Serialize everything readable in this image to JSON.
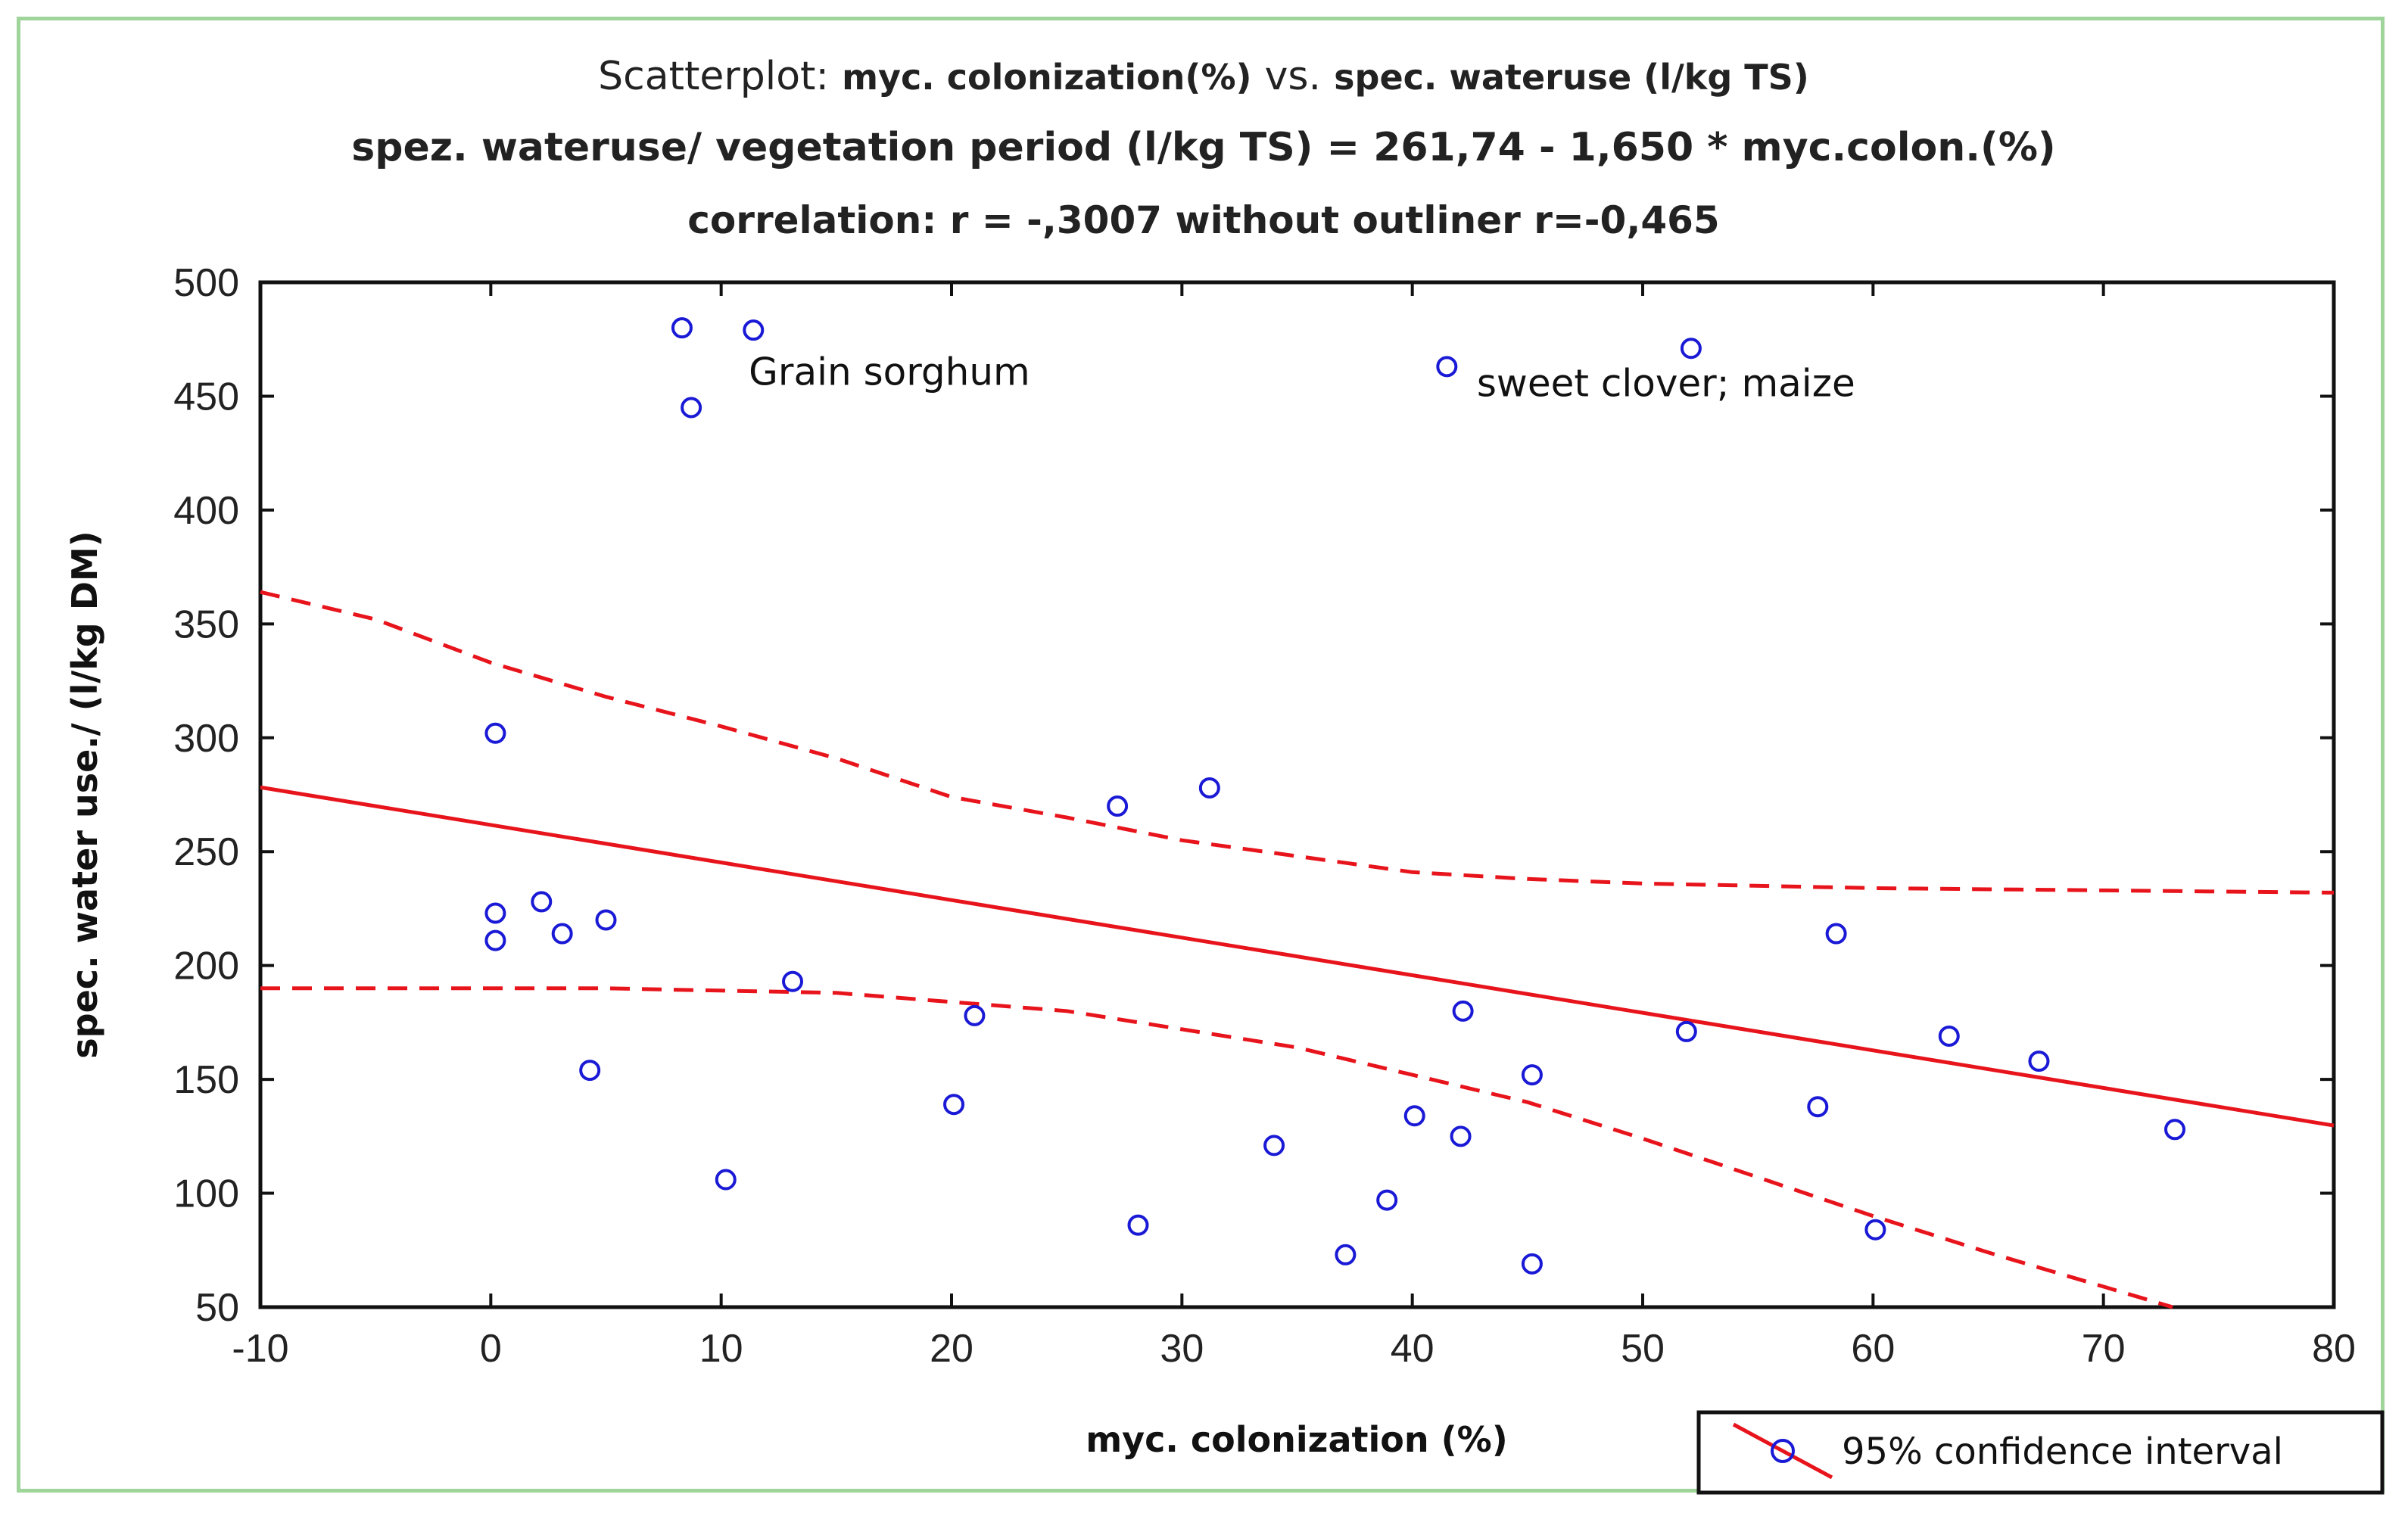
{
  "chart_data": {
    "type": "scatter",
    "title_prefix": "Scatterplot:",
    "title_x": "myc. colonization(%)",
    "title_vs": "vs.",
    "title_y": "spec. wateruse (l/kg TS)",
    "subtitle_equation": "spez. wateruse/ vegetation period (l/kg TS) = 261,74 - 1,650  * myc.colon.(%)",
    "subtitle_correlation": "correlation: r = -,3007 without outliner r=-0,465",
    "xlabel": "myc. colonization (%)",
    "ylabel": "spec. water use./ (l/kg DM)",
    "xlim": [
      -10,
      80
    ],
    "ylim": [
      50,
      500
    ],
    "xticks": [
      -10,
      0,
      10,
      20,
      30,
      40,
      50,
      60,
      70,
      80
    ],
    "yticks": [
      50,
      100,
      150,
      200,
      250,
      300,
      350,
      400,
      450,
      500
    ],
    "points": [
      {
        "x": 8.3,
        "y": 480
      },
      {
        "x": 11.4,
        "y": 479
      },
      {
        "x": 8.7,
        "y": 445
      },
      {
        "x": 52.1,
        "y": 471
      },
      {
        "x": 41.5,
        "y": 463
      },
      {
        "x": 0.2,
        "y": 302
      },
      {
        "x": 27.2,
        "y": 270
      },
      {
        "x": 31.2,
        "y": 278
      },
      {
        "x": 0.2,
        "y": 223
      },
      {
        "x": 0.2,
        "y": 211
      },
      {
        "x": 2.2,
        "y": 228
      },
      {
        "x": 3.1,
        "y": 214
      },
      {
        "x": 5.0,
        "y": 220
      },
      {
        "x": 4.3,
        "y": 154
      },
      {
        "x": 13.1,
        "y": 193
      },
      {
        "x": 21.0,
        "y": 178
      },
      {
        "x": 20.1,
        "y": 139
      },
      {
        "x": 10.2,
        "y": 106
      },
      {
        "x": 28.1,
        "y": 86
      },
      {
        "x": 34.0,
        "y": 121
      },
      {
        "x": 37.1,
        "y": 73
      },
      {
        "x": 38.9,
        "y": 97
      },
      {
        "x": 40.1,
        "y": 134
      },
      {
        "x": 42.2,
        "y": 180
      },
      {
        "x": 42.1,
        "y": 125
      },
      {
        "x": 45.2,
        "y": 152
      },
      {
        "x": 45.2,
        "y": 69
      },
      {
        "x": 51.9,
        "y": 171
      },
      {
        "x": 57.6,
        "y": 138
      },
      {
        "x": 58.4,
        "y": 214
      },
      {
        "x": 60.1,
        "y": 84
      },
      {
        "x": 63.3,
        "y": 169
      },
      {
        "x": 67.2,
        "y": 158
      },
      {
        "x": 73.1,
        "y": 128
      }
    ],
    "regression": {
      "intercept": 261.74,
      "slope": -1.65
    },
    "ci_upper": [
      {
        "x": -10,
        "y": 364
      },
      {
        "x": -5,
        "y": 352
      },
      {
        "x": 0,
        "y": 333
      },
      {
        "x": 5,
        "y": 318
      },
      {
        "x": 10,
        "y": 305
      },
      {
        "x": 15,
        "y": 291
      },
      {
        "x": 20,
        "y": 274
      },
      {
        "x": 25,
        "y": 265
      },
      {
        "x": 30,
        "y": 255
      },
      {
        "x": 35,
        "y": 248
      },
      {
        "x": 40,
        "y": 241
      },
      {
        "x": 45,
        "y": 238
      },
      {
        "x": 50,
        "y": 236
      },
      {
        "x": 60,
        "y": 234
      },
      {
        "x": 70,
        "y": 233
      },
      {
        "x": 80,
        "y": 232
      }
    ],
    "ci_lower": [
      {
        "x": -10,
        "y": 190
      },
      {
        "x": 0,
        "y": 190
      },
      {
        "x": 5,
        "y": 190
      },
      {
        "x": 10,
        "y": 189
      },
      {
        "x": 15,
        "y": 188
      },
      {
        "x": 20,
        "y": 184
      },
      {
        "x": 25,
        "y": 180
      },
      {
        "x": 30,
        "y": 172
      },
      {
        "x": 35,
        "y": 164
      },
      {
        "x": 40,
        "y": 152
      },
      {
        "x": 45,
        "y": 140
      },
      {
        "x": 50,
        "y": 124
      },
      {
        "x": 55,
        "y": 107
      },
      {
        "x": 60,
        "y": 90
      },
      {
        "x": 65,
        "y": 74
      },
      {
        "x": 70,
        "y": 59
      },
      {
        "x": 73,
        "y": 50
      }
    ],
    "annotations": [
      {
        "text": "Grain sorghum",
        "x": 11.2,
        "y": 455
      },
      {
        "text": "sweet clover; maize",
        "x": 42.8,
        "y": 450
      }
    ],
    "legend": {
      "label": "95% confidence interval",
      "placement": "bottom-right"
    },
    "colors": {
      "points": "#1a1ad6",
      "lines": "#e8141c",
      "axis": "#111111",
      "frame": "#9fd49a"
    }
  }
}
